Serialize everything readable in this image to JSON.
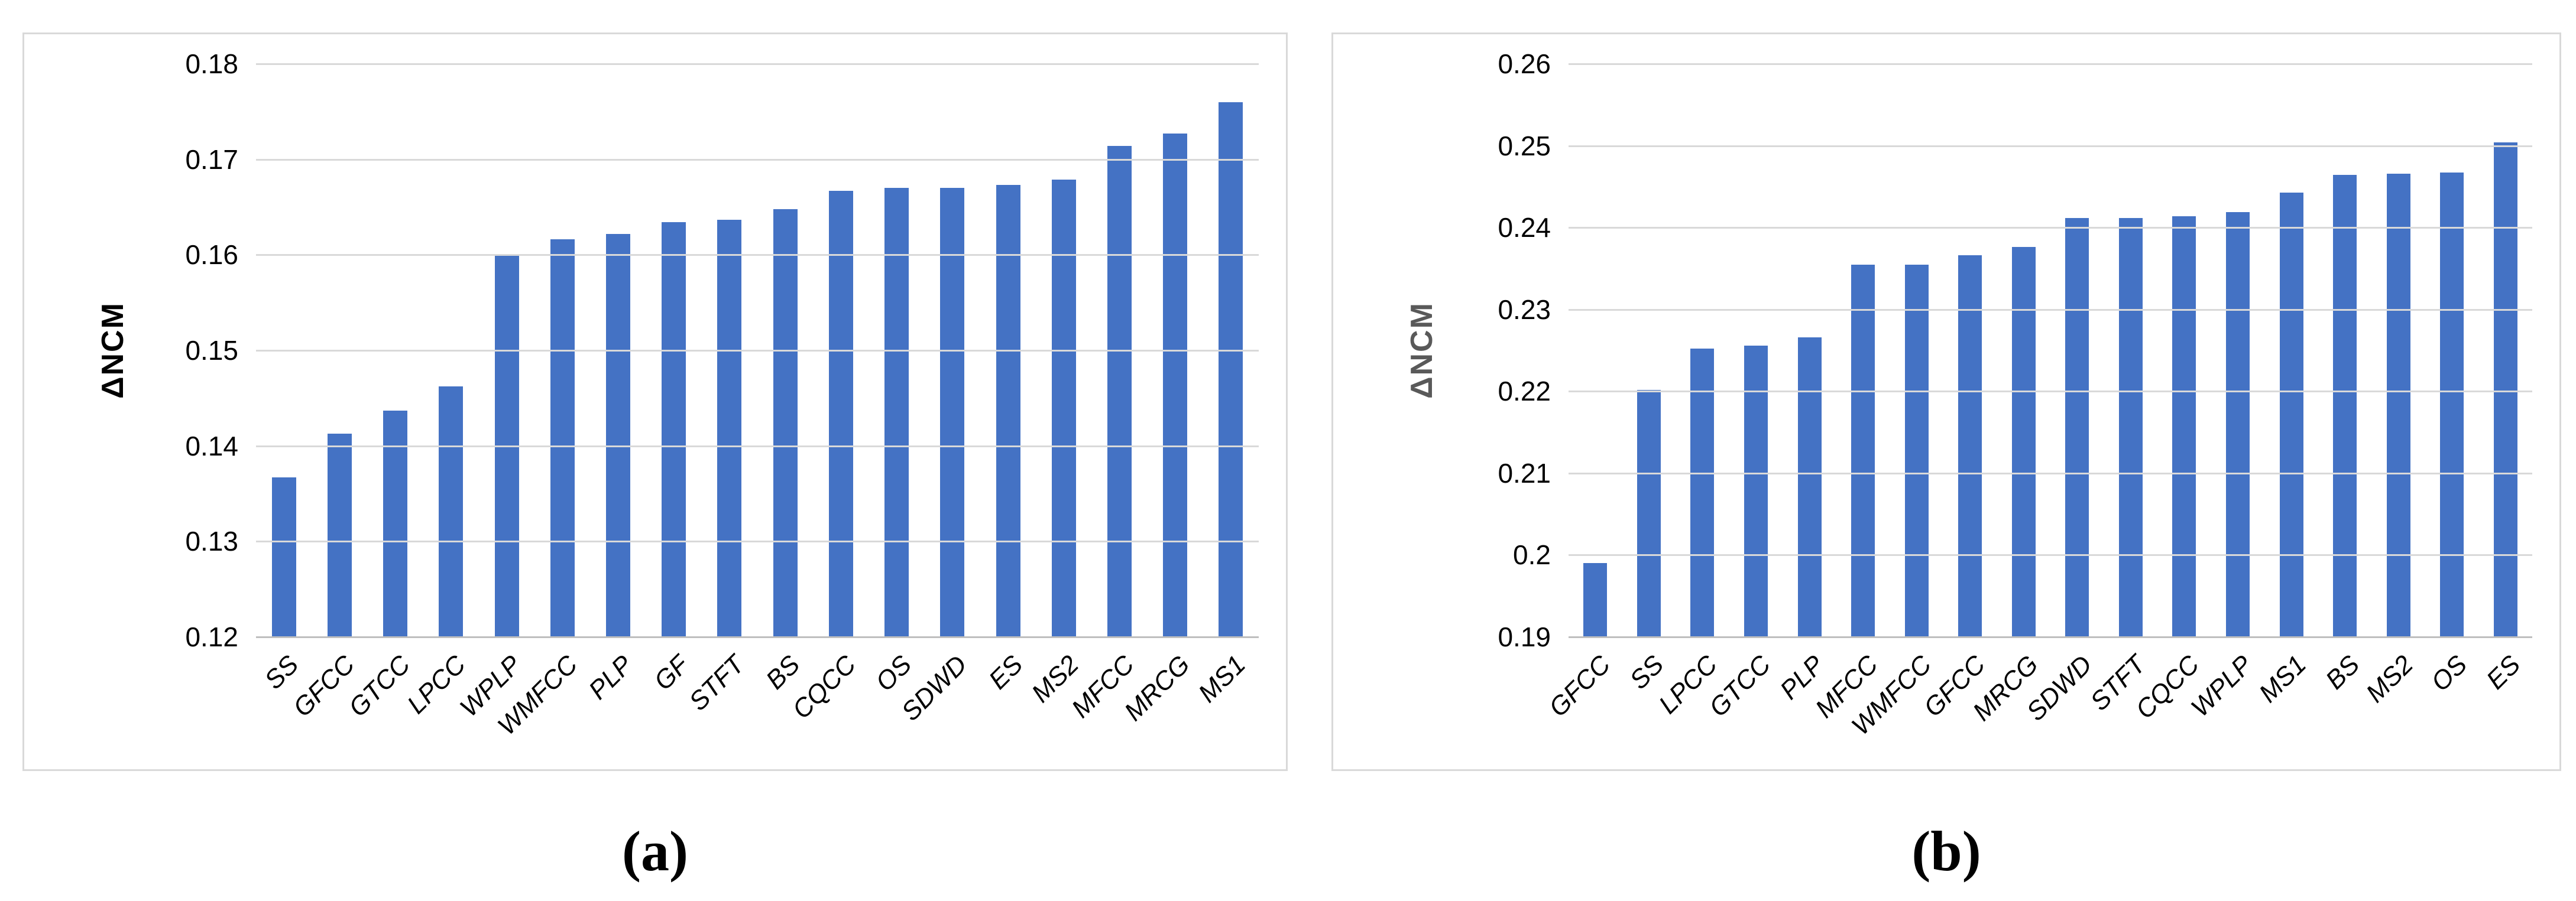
{
  "figure": {
    "colors": {
      "bar": "#4472C4",
      "gridline": "#D9D9D9",
      "baseline": "#BFBFBF",
      "panel_border": "#D9D9D9"
    }
  },
  "chart_data": [
    {
      "id": "a",
      "type": "bar",
      "caption": "(a)",
      "ylabel": "ΔNCM",
      "ylabel_color": "#000000",
      "xlabel": "",
      "ylim": [
        0.12,
        0.18
      ],
      "yticks": [
        "0.18",
        "0.17",
        "0.16",
        "0.15",
        "0.14",
        "0.13",
        "0.12"
      ],
      "grid": true,
      "legend": "none",
      "categories": [
        "SS",
        "GFCC",
        "GTCC",
        "LPCC",
        "WPLP",
        "WMFCC",
        "PLP",
        "GF",
        "STFT",
        "BS",
        "CQCC",
        "OS",
        "SDWD",
        "ES",
        "MS2",
        "MFCC",
        "MRCG",
        "MS1"
      ],
      "values": [
        0.1367,
        0.1413,
        0.1437,
        0.1462,
        0.1601,
        0.1616,
        0.1622,
        0.1634,
        0.1637,
        0.1648,
        0.1667,
        0.167,
        0.167,
        0.1673,
        0.1679,
        0.1714,
        0.1727,
        0.176
      ]
    },
    {
      "id": "b",
      "type": "bar",
      "caption": "(b)",
      "ylabel": "ΔNCM",
      "ylabel_color": "#595959",
      "xlabel": "",
      "ylim": [
        0.19,
        0.26
      ],
      "yticks": [
        "0.26",
        "0.25",
        "0.24",
        "0.23",
        "0.22",
        "0.21",
        "0.2",
        "0.19"
      ],
      "grid": true,
      "legend": "none",
      "categories": [
        "GFCC",
        "SS",
        "LPCC",
        "GTCC",
        "PLP",
        "MFCC",
        "WMFCC",
        "GFCC",
        "MRCG",
        "SDWD",
        "STFT",
        "CQCC",
        "WPLP",
        "MS1",
        "BS",
        "MS2",
        "OS",
        "ES"
      ],
      "values": [
        0.199,
        0.2202,
        0.2252,
        0.2256,
        0.2266,
        0.2355,
        0.2355,
        0.2366,
        0.2376,
        0.2412,
        0.2412,
        0.2414,
        0.2419,
        0.2443,
        0.2464,
        0.2466,
        0.2467,
        0.2504
      ]
    }
  ]
}
